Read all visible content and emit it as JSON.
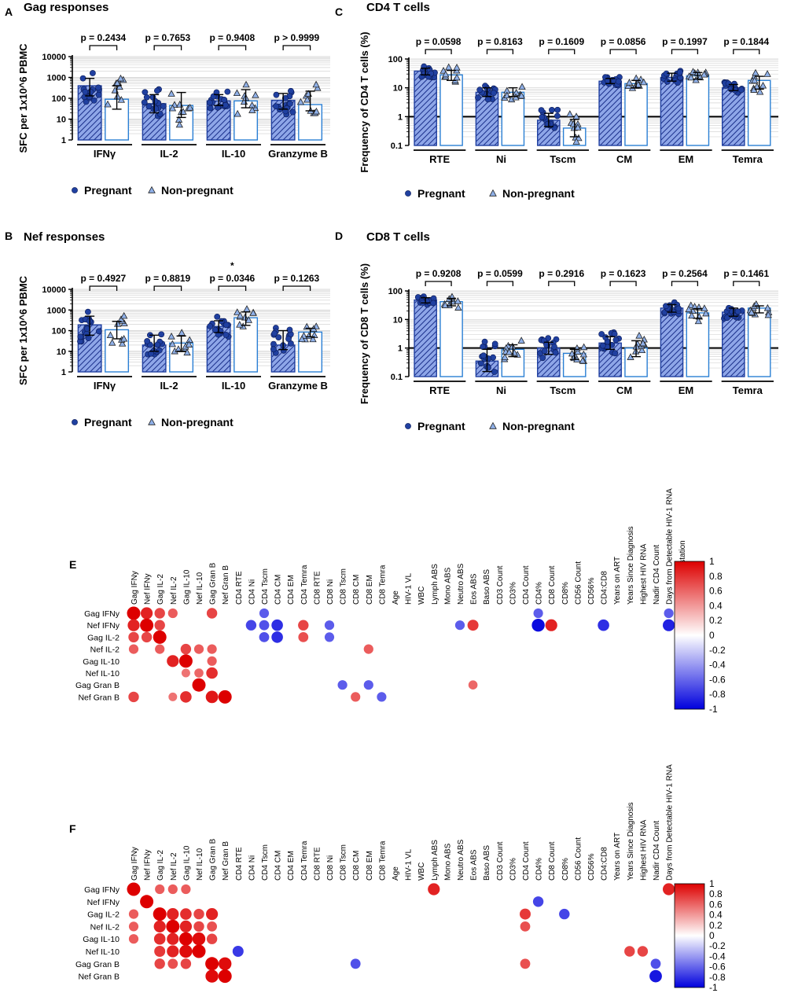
{
  "chart_data": [
    {
      "id": "A",
      "type": "bar",
      "title": "Gag responses",
      "log": true,
      "ylabel": "SFC per 1x10^6 PBMC",
      "yticks": [
        "1",
        "10",
        "100",
        "1000",
        "10000"
      ],
      "ylim": [
        1,
        10000
      ],
      "categories": [
        "IFNγ",
        "IL-2",
        "IL-10",
        "Granzyme B"
      ],
      "p_values": [
        "p = 0.2434",
        "p = 0.7653",
        "p = 0.9408",
        "p > 0.9999"
      ],
      "stars": [
        "",
        "",
        "",
        ""
      ],
      "series": [
        {
          "name": "Pregnant",
          "values": [
            400,
            55,
            75,
            80
          ],
          "err_low": [
            130,
            20,
            45,
            30
          ],
          "err_high": [
            900,
            150,
            150,
            170
          ]
        },
        {
          "name": "Non-pregnant",
          "values": [
            90,
            45,
            75,
            50
          ],
          "err_low": [
            30,
            12,
            35,
            25
          ],
          "err_high": [
            400,
            190,
            260,
            220
          ]
        }
      ],
      "legend": [
        "Pregnant",
        "Non-pregnant"
      ]
    },
    {
      "id": "B",
      "type": "bar",
      "title": "Nef responses",
      "log": true,
      "ylabel": "SFC per 1x10^6 PBMC",
      "yticks": [
        "1",
        "10",
        "100",
        "1000",
        "10000"
      ],
      "ylim": [
        1,
        10000
      ],
      "categories": [
        "IFNγ",
        "IL-2",
        "IL-10",
        "Granzyme B"
      ],
      "p_values": [
        "p = 0.4927",
        "p = 0.8819",
        "p = 0.0346",
        "p = 0.1263"
      ],
      "stars": [
        "",
        "",
        "*",
        ""
      ],
      "series": [
        {
          "name": "Pregnant",
          "values": [
            190,
            20,
            160,
            20
          ],
          "err_low": [
            60,
            10,
            80,
            12
          ],
          "err_high": [
            500,
            60,
            300,
            100
          ]
        },
        {
          "name": "Non-pregnant",
          "values": [
            110,
            25,
            420,
            85
          ],
          "err_low": [
            40,
            10,
            180,
            50
          ],
          "err_high": [
            280,
            55,
            800,
            130
          ]
        }
      ],
      "legend": [
        "Pregnant",
        "Non-pregnant"
      ]
    },
    {
      "id": "C",
      "type": "bar",
      "title": "CD4 T cells",
      "log": true,
      "baseline": 1,
      "ylabel": "Frequency of CD4 T cells (%)",
      "yticks": [
        "0.1",
        "1",
        "10",
        "100"
      ],
      "ylim": [
        0.1,
        100
      ],
      "categories": [
        "RTE",
        "Ni",
        "Tscm",
        "CM",
        "EM",
        "Temra"
      ],
      "p_values": [
        "p = 0.0598",
        "p = 0.8163",
        "p = 0.1609",
        "p = 0.0856",
        "p = 0.1997",
        "p = 0.1844"
      ],
      "stars": [
        "",
        "",
        "",
        "",
        "",
        ""
      ],
      "series": [
        {
          "name": "Pregnant",
          "values": [
            38,
            7,
            0.75,
            17,
            23,
            10
          ],
          "err_low": [
            28,
            5,
            0.45,
            14,
            17,
            8
          ],
          "err_high": [
            48,
            10,
            1.3,
            21,
            32,
            13
          ]
        },
        {
          "name": "Non-pregnant",
          "values": [
            28,
            7,
            0.4,
            14,
            26,
            18
          ],
          "err_low": [
            18,
            5,
            0.2,
            10,
            20,
            9
          ],
          "err_high": [
            40,
            10,
            0.8,
            18,
            34,
            25
          ]
        }
      ],
      "legend": [
        "Pregnant",
        "Non-pregnant"
      ]
    },
    {
      "id": "D",
      "type": "bar",
      "title": "CD8 T cells",
      "log": true,
      "baseline": 1,
      "ylabel": "Frequency of CD8 T cells (%)",
      "yticks": [
        "0.1",
        "1",
        "10",
        "100"
      ],
      "ylim": [
        0.1,
        100
      ],
      "categories": [
        "RTE",
        "Ni",
        "Tscm",
        "CM",
        "EM",
        "Temra"
      ],
      "p_values": [
        "p = 0.9208",
        "p = 0.0599",
        "p = 0.2916",
        "p = 0.1623",
        "p = 0.2564",
        "p = 0.1461"
      ],
      "stars": [
        "",
        "",
        "",
        "",
        "",
        ""
      ],
      "series": [
        {
          "name": "Pregnant",
          "values": [
            48,
            0.35,
            1.0,
            1.5,
            25,
            18
          ],
          "err_low": [
            38,
            0.15,
            0.6,
            0.9,
            18,
            13
          ],
          "err_high": [
            58,
            0.9,
            1.6,
            2.5,
            33,
            25
          ]
        },
        {
          "name": "Non-pregnant",
          "values": [
            42,
            0.9,
            0.65,
            1.0,
            17,
            25
          ],
          "err_low": [
            30,
            0.5,
            0.4,
            0.5,
            11,
            17
          ],
          "err_high": [
            55,
            1.3,
            0.9,
            1.8,
            24,
            30
          ]
        }
      ],
      "legend": [
        "Pregnant",
        "Non-pregnant"
      ]
    },
    {
      "id": "E",
      "type": "heatmap",
      "rows": [
        "Gag IFNy",
        "Nef IFNy",
        "Gag IL-2",
        "Nef IL-2",
        "Gag IL-10",
        "Nef IL-10",
        "Gag Gran B",
        "Nef Gran B"
      ],
      "columns": [
        "Gag IFNy",
        "Nef IFNy",
        "Gag IL-2",
        "Nef IL-2",
        "Gag IL-10",
        "Nef IL-10",
        "Gag Gran B",
        "Nef Gran B",
        "CD4 RTE",
        "CD4 Ni",
        "CD4 Tscm",
        "CD4 CM",
        "CD4 EM",
        "CD4 Temra",
        "CD8 RTE",
        "CD8 Ni",
        "CD8 Tscm",
        "CD8 CM",
        "CD8 EM",
        "CD8 Temra",
        "Age",
        "HIV-1 VL",
        "WBC",
        "Lymph ABS",
        "Mono ABS",
        "Neutro ABS",
        "Eos ABS",
        "Baso ABS",
        "CD3 Count",
        "CD3%",
        "CD4 Count",
        "CD4%",
        "CD8 Count",
        "CD8%",
        "CD56 Count",
        "CD56%",
        "CD4:CD8",
        "Years on ART",
        "Years Since Diagnosis",
        "Highest HIV RNA",
        "Nadir CD4 Count",
        "Days from Detectable HIV-1 RNA",
        "Delivery Gestation"
      ],
      "cells": [
        [
          0,
          0,
          1
        ],
        [
          0,
          1,
          0.85
        ],
        [
          0,
          2,
          0.7
        ],
        [
          0,
          3,
          0.6
        ],
        [
          0,
          6,
          0.7
        ],
        [
          0,
          10,
          -0.6
        ],
        [
          0,
          31,
          -0.6
        ],
        [
          0,
          41,
          -0.6
        ],
        [
          1,
          0,
          0.85
        ],
        [
          1,
          1,
          1
        ],
        [
          1,
          2,
          0.7
        ],
        [
          1,
          9,
          -0.7
        ],
        [
          1,
          10,
          -0.65
        ],
        [
          1,
          11,
          -0.8
        ],
        [
          1,
          13,
          0.7
        ],
        [
          1,
          15,
          -0.6
        ],
        [
          1,
          25,
          -0.6
        ],
        [
          1,
          26,
          0.75
        ],
        [
          1,
          31,
          -0.95
        ],
        [
          1,
          32,
          0.85
        ],
        [
          1,
          36,
          -0.8
        ],
        [
          1,
          41,
          -0.85
        ],
        [
          2,
          0,
          0.7
        ],
        [
          2,
          1,
          0.7
        ],
        [
          2,
          2,
          1
        ],
        [
          2,
          10,
          -0.65
        ],
        [
          2,
          11,
          -0.8
        ],
        [
          2,
          13,
          0.65
        ],
        [
          2,
          15,
          -0.6
        ],
        [
          3,
          0,
          0.6
        ],
        [
          3,
          2,
          0.6
        ],
        [
          3,
          4,
          0.7
        ],
        [
          3,
          5,
          0.6
        ],
        [
          3,
          6,
          0.6
        ],
        [
          3,
          18,
          0.6
        ],
        [
          4,
          3,
          0.85
        ],
        [
          4,
          4,
          1
        ],
        [
          4,
          6,
          0.6
        ],
        [
          5,
          4,
          0.5
        ],
        [
          5,
          5,
          0.55
        ],
        [
          5,
          6,
          0.8
        ],
        [
          6,
          5,
          1
        ],
        [
          6,
          16,
          -0.6
        ],
        [
          6,
          18,
          -0.6
        ],
        [
          6,
          26,
          0.55
        ],
        [
          7,
          0,
          0.7
        ],
        [
          7,
          3,
          0.5
        ],
        [
          7,
          4,
          0.8
        ],
        [
          7,
          6,
          0.9
        ],
        [
          7,
          7,
          1
        ],
        [
          7,
          17,
          0.6
        ],
        [
          7,
          19,
          -0.6
        ]
      ],
      "colorbar_ticks": [
        "1",
        "0.8",
        "0.6",
        "0.4",
        "0.2",
        "0",
        "-0.2",
        "-0.4",
        "-0.6",
        "-0.8",
        "-1"
      ]
    },
    {
      "id": "F",
      "type": "heatmap",
      "rows": [
        "Gag IFNy",
        "Nef IFNy",
        "Gag IL-2",
        "Nef IL-2",
        "Gag IL-10",
        "Nef IL-10",
        "Gag Gran B",
        "Nef Gran B"
      ],
      "columns": [
        "Gag IFNy",
        "Nef IFNy",
        "Gag IL-2",
        "Nef IL-2",
        "Gag IL-10",
        "Nef IL-10",
        "Gag Gran B",
        "Nef Gran B",
        "CD4 RTE",
        "CD4 Ni",
        "CD4 Tscm",
        "CD4 CM",
        "CD4 EM",
        "CD4 Temra",
        "CD8 RTE",
        "CD8 Ni",
        "CD8 Tscm",
        "CD8 CM",
        "CD8 EM",
        "CD8 Temra",
        "Age",
        "HIV-1 VL",
        "WBC",
        "Lymph ABS",
        "Mono ABS",
        "Neutro ABS",
        "Eos ABS",
        "Baso ABS",
        "CD3 Count",
        "CD3%",
        "CD4 Count",
        "CD4%",
        "CD8 Count",
        "CD8%",
        "CD56 Count",
        "CD56%",
        "CD4:CD8",
        "Years on ART",
        "Years Since Diagnosis",
        "Highest HIV RNA",
        "Nadir CD4 Count",
        "Days from Detectable HIV-1 RNA"
      ],
      "cells": [
        [
          0,
          0,
          1
        ],
        [
          0,
          2,
          0.6
        ],
        [
          0,
          3,
          0.6
        ],
        [
          0,
          4,
          0.6
        ],
        [
          0,
          23,
          0.85
        ],
        [
          0,
          41,
          0.85
        ],
        [
          1,
          1,
          1
        ],
        [
          1,
          31,
          -0.7
        ],
        [
          2,
          0,
          0.6
        ],
        [
          2,
          2,
          1
        ],
        [
          2,
          3,
          0.85
        ],
        [
          2,
          4,
          0.8
        ],
        [
          2,
          5,
          0.7
        ],
        [
          2,
          6,
          0.85
        ],
        [
          2,
          30,
          0.75
        ],
        [
          2,
          33,
          -0.7
        ],
        [
          3,
          0,
          0.6
        ],
        [
          3,
          2,
          0.85
        ],
        [
          3,
          3,
          1
        ],
        [
          3,
          4,
          0.85
        ],
        [
          3,
          5,
          0.7
        ],
        [
          3,
          6,
          0.65
        ],
        [
          3,
          30,
          0.65
        ],
        [
          4,
          0,
          0.6
        ],
        [
          4,
          2,
          0.8
        ],
        [
          4,
          3,
          0.85
        ],
        [
          4,
          4,
          1
        ],
        [
          4,
          5,
          0.95
        ],
        [
          4,
          6,
          0.7
        ],
        [
          5,
          2,
          0.75
        ],
        [
          5,
          3,
          0.85
        ],
        [
          5,
          4,
          0.95
        ],
        [
          5,
          5,
          1
        ],
        [
          5,
          8,
          -0.75
        ],
        [
          5,
          38,
          0.7
        ],
        [
          5,
          39,
          0.7
        ],
        [
          6,
          2,
          0.7
        ],
        [
          6,
          3,
          0.65
        ],
        [
          6,
          4,
          0.7
        ],
        [
          6,
          6,
          1
        ],
        [
          6,
          7,
          0.95
        ],
        [
          6,
          17,
          -0.65
        ],
        [
          6,
          30,
          0.65
        ],
        [
          6,
          40,
          -0.65
        ],
        [
          7,
          6,
          0.95
        ],
        [
          7,
          7,
          1
        ],
        [
          7,
          40,
          -0.9
        ]
      ],
      "colorbar_ticks": [
        "1",
        "0.8",
        "0.6",
        "0.4",
        "0.2",
        "0",
        "-0.2",
        "-0.4",
        "-0.6",
        "-0.8",
        "-1"
      ]
    }
  ],
  "colors": {
    "pregnant_fill": "#8ea6e8",
    "pregnant_hatch": "#1a2f8a",
    "pregnant_point": "#2040a0",
    "nonpregnant_edge": "#2a7fd4",
    "nonpregnant_point": "#8fb0e8",
    "positive": "#dd0000",
    "negative": "#0000dd"
  }
}
